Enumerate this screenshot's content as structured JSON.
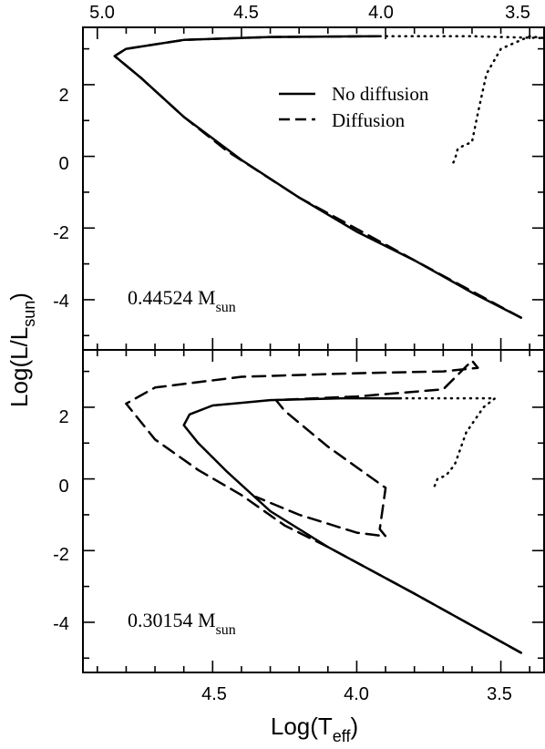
{
  "chart_data": {
    "type": "line",
    "x_axis": {
      "label_main": "Log(T",
      "label_sub": "eff",
      "label_close": ")",
      "xlim": [
        4.95,
        3.35
      ],
      "ticks": [
        4.5,
        4.0,
        3.5
      ],
      "tick_labels": [
        "4.5",
        "4.0",
        "3.5"
      ],
      "top_tick_labels": [
        "5.0",
        "4.5",
        "4.0",
        "3.5"
      ],
      "top_ticks": [
        5.0,
        4.5,
        4.0,
        3.5
      ],
      "top_xlim": [
        5.05,
        3.45
      ]
    },
    "y_axis": {
      "label_main": "Log(L/L",
      "label_sub": "sun",
      "label_close": ")",
      "ticks": [
        2,
        0,
        -2,
        -4
      ],
      "tick_labels": [
        "2",
        "0",
        "-2",
        "-4"
      ]
    },
    "legend": {
      "placement": "top-right of upper panel",
      "entries": [
        {
          "label": "No diffusion",
          "style": "solid"
        },
        {
          "label": "Diffusion",
          "style": "dashed"
        }
      ]
    },
    "panels": [
      {
        "mass_label": "0.44524 M",
        "mass_sub": "sun",
        "ylim": [
          -5.4,
          3.6
        ],
        "series": [
          {
            "name": "No diffusion",
            "style": "solid",
            "points": [
              [
                3.43,
                -4.5
              ],
              [
                3.6,
                -3.8
              ],
              [
                3.8,
                -2.9
              ],
              [
                4.0,
                -2.1
              ],
              [
                4.2,
                -1.15
              ],
              [
                4.4,
                -0.1
              ],
              [
                4.6,
                1.1
              ],
              [
                4.75,
                2.2
              ],
              [
                4.84,
                2.8
              ],
              [
                4.8,
                3.0
              ],
              [
                4.6,
                3.25
              ],
              [
                4.3,
                3.33
              ],
              [
                3.92,
                3.35
              ]
            ]
          },
          {
            "name": "Diffusion",
            "style": "dashed",
            "points": [
              [
                3.43,
                -4.5
              ],
              [
                3.8,
                -2.9
              ],
              [
                4.2,
                -1.15
              ],
              [
                4.45,
                0.15
              ],
              [
                4.6,
                1.1
              ],
              [
                4.75,
                2.2
              ],
              [
                4.84,
                2.8
              ],
              [
                4.8,
                3.0
              ],
              [
                4.6,
                3.25
              ],
              [
                4.3,
                3.33
              ],
              [
                3.92,
                3.35
              ]
            ]
          },
          {
            "name": "",
            "style": "dotted",
            "points": [
              [
                3.92,
                3.35
              ],
              [
                3.6,
                3.35
              ],
              [
                3.35,
                3.3
              ],
              [
                3.4,
                3.35
              ],
              [
                3.5,
                3.0
              ],
              [
                3.55,
                2.3
              ],
              [
                3.58,
                1.2
              ],
              [
                3.6,
                0.4
              ],
              [
                3.63,
                0.3
              ],
              [
                3.65,
                0.2
              ],
              [
                3.66,
                -0.1
              ],
              [
                3.67,
                -0.25
              ]
            ]
          }
        ]
      },
      {
        "mass_label": "0.30154 M",
        "mass_sub": "sun",
        "ylim": [
          -5.4,
          3.6
        ],
        "series": [
          {
            "name": "No diffusion",
            "style": "solid",
            "points": [
              [
                3.43,
                -4.85
              ],
              [
                3.8,
                -3.2
              ],
              [
                4.1,
                -1.9
              ],
              [
                4.3,
                -0.9
              ],
              [
                4.45,
                0.2
              ],
              [
                4.55,
                1.0
              ],
              [
                4.6,
                1.5
              ],
              [
                4.58,
                1.8
              ],
              [
                4.5,
                2.05
              ],
              [
                4.3,
                2.2
              ],
              [
                4.05,
                2.25
              ],
              [
                3.85,
                2.25
              ]
            ]
          },
          {
            "name": "Diffusion",
            "style": "dashed",
            "points": [
              [
                3.43,
                -4.85
              ],
              [
                3.8,
                -3.2
              ],
              [
                4.1,
                -1.9
              ],
              [
                4.25,
                -1.3
              ],
              [
                4.4,
                -0.45
              ],
              [
                4.55,
                0.25
              ],
              [
                4.7,
                1.1
              ],
              [
                4.8,
                2.1
              ],
              [
                4.7,
                2.55
              ],
              [
                4.4,
                2.85
              ],
              [
                4.0,
                2.95
              ],
              [
                3.7,
                3.0
              ],
              [
                3.58,
                3.1
              ],
              [
                3.6,
                3.3
              ],
              [
                3.7,
                2.5
              ],
              [
                4.0,
                2.3
              ],
              [
                4.28,
                2.2
              ],
              [
                4.25,
                1.9
              ],
              [
                4.1,
                0.9
              ],
              [
                3.9,
                -0.25
              ],
              [
                3.92,
                -1.4
              ],
              [
                3.9,
                -1.6
              ],
              [
                4.0,
                -1.5
              ],
              [
                4.2,
                -1.0
              ],
              [
                4.35,
                -0.5
              ]
            ]
          },
          {
            "name": "",
            "style": "dotted",
            "points": [
              [
                3.85,
                2.25
              ],
              [
                3.6,
                2.25
              ],
              [
                3.52,
                2.25
              ],
              [
                3.56,
                2.0
              ],
              [
                3.62,
                1.3
              ],
              [
                3.66,
                0.4
              ],
              [
                3.69,
                0.1
              ],
              [
                3.72,
                0.0
              ],
              [
                3.73,
                -0.2
              ],
              [
                3.72,
                -0.3
              ]
            ]
          }
        ]
      }
    ]
  }
}
